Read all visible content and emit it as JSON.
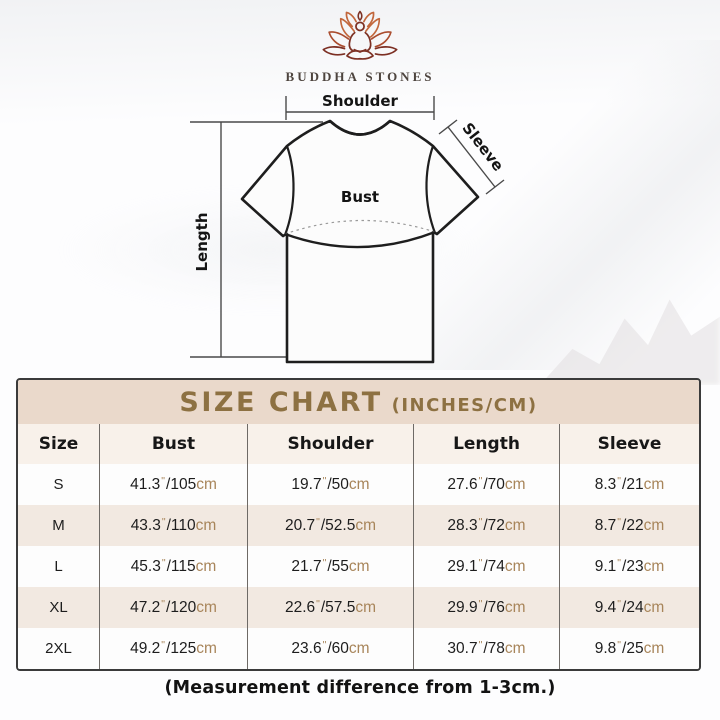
{
  "brand": {
    "name": "BUDDHA STONES"
  },
  "diagram": {
    "shoulder_label": "Shoulder",
    "sleeve_label": "Sleeve",
    "bust_label": "Bust",
    "length_label": "Length"
  },
  "size_chart": {
    "title": "SIZE CHART",
    "subtitle": "(INCHES/CM)",
    "columns": [
      "Size",
      "Bust",
      "Shoulder",
      "Length",
      "Sleeve"
    ],
    "unit_inch": "\"",
    "unit_cm": "cm",
    "rows": [
      {
        "size": "S",
        "measurements": [
          {
            "inches": "41.3",
            "cm": "105"
          },
          {
            "inches": "19.7",
            "cm": "50"
          },
          {
            "inches": "27.6",
            "cm": "70"
          },
          {
            "inches": "8.3",
            "cm": "21"
          }
        ]
      },
      {
        "size": "M",
        "measurements": [
          {
            "inches": "43.3",
            "cm": "110"
          },
          {
            "inches": "20.7",
            "cm": "52.5"
          },
          {
            "inches": "28.3",
            "cm": "72"
          },
          {
            "inches": "8.7",
            "cm": "22"
          }
        ]
      },
      {
        "size": "L",
        "measurements": [
          {
            "inches": "45.3",
            "cm": "115"
          },
          {
            "inches": "21.7",
            "cm": "55"
          },
          {
            "inches": "29.1",
            "cm": "74"
          },
          {
            "inches": "9.1",
            "cm": "23"
          }
        ]
      },
      {
        "size": "XL",
        "measurements": [
          {
            "inches": "47.2",
            "cm": "120"
          },
          {
            "inches": "22.6",
            "cm": "57.5"
          },
          {
            "inches": "29.9",
            "cm": "76"
          },
          {
            "inches": "9.4",
            "cm": "24"
          }
        ]
      },
      {
        "size": "2XL",
        "measurements": [
          {
            "inches": "49.2",
            "cm": "125"
          },
          {
            "inches": "23.6",
            "cm": "60"
          },
          {
            "inches": "30.7",
            "cm": "78"
          },
          {
            "inches": "9.8",
            "cm": "25"
          }
        ]
      }
    ]
  },
  "footer": {
    "note": "(Measurement difference from 1-3cm.)"
  },
  "colors": {
    "accent_gold": "#8d7142",
    "unit_gold": "#a8855a",
    "title_bg": "#ead9cb",
    "header_bg": "#f8f1ea",
    "row_alt_bg": "#f2e9e1",
    "border_dark": "#3b3b3b",
    "logo_dark_red": "#7c2f23",
    "logo_mid_red": "#aa4c2e",
    "logo_orange": "#c2673c"
  }
}
